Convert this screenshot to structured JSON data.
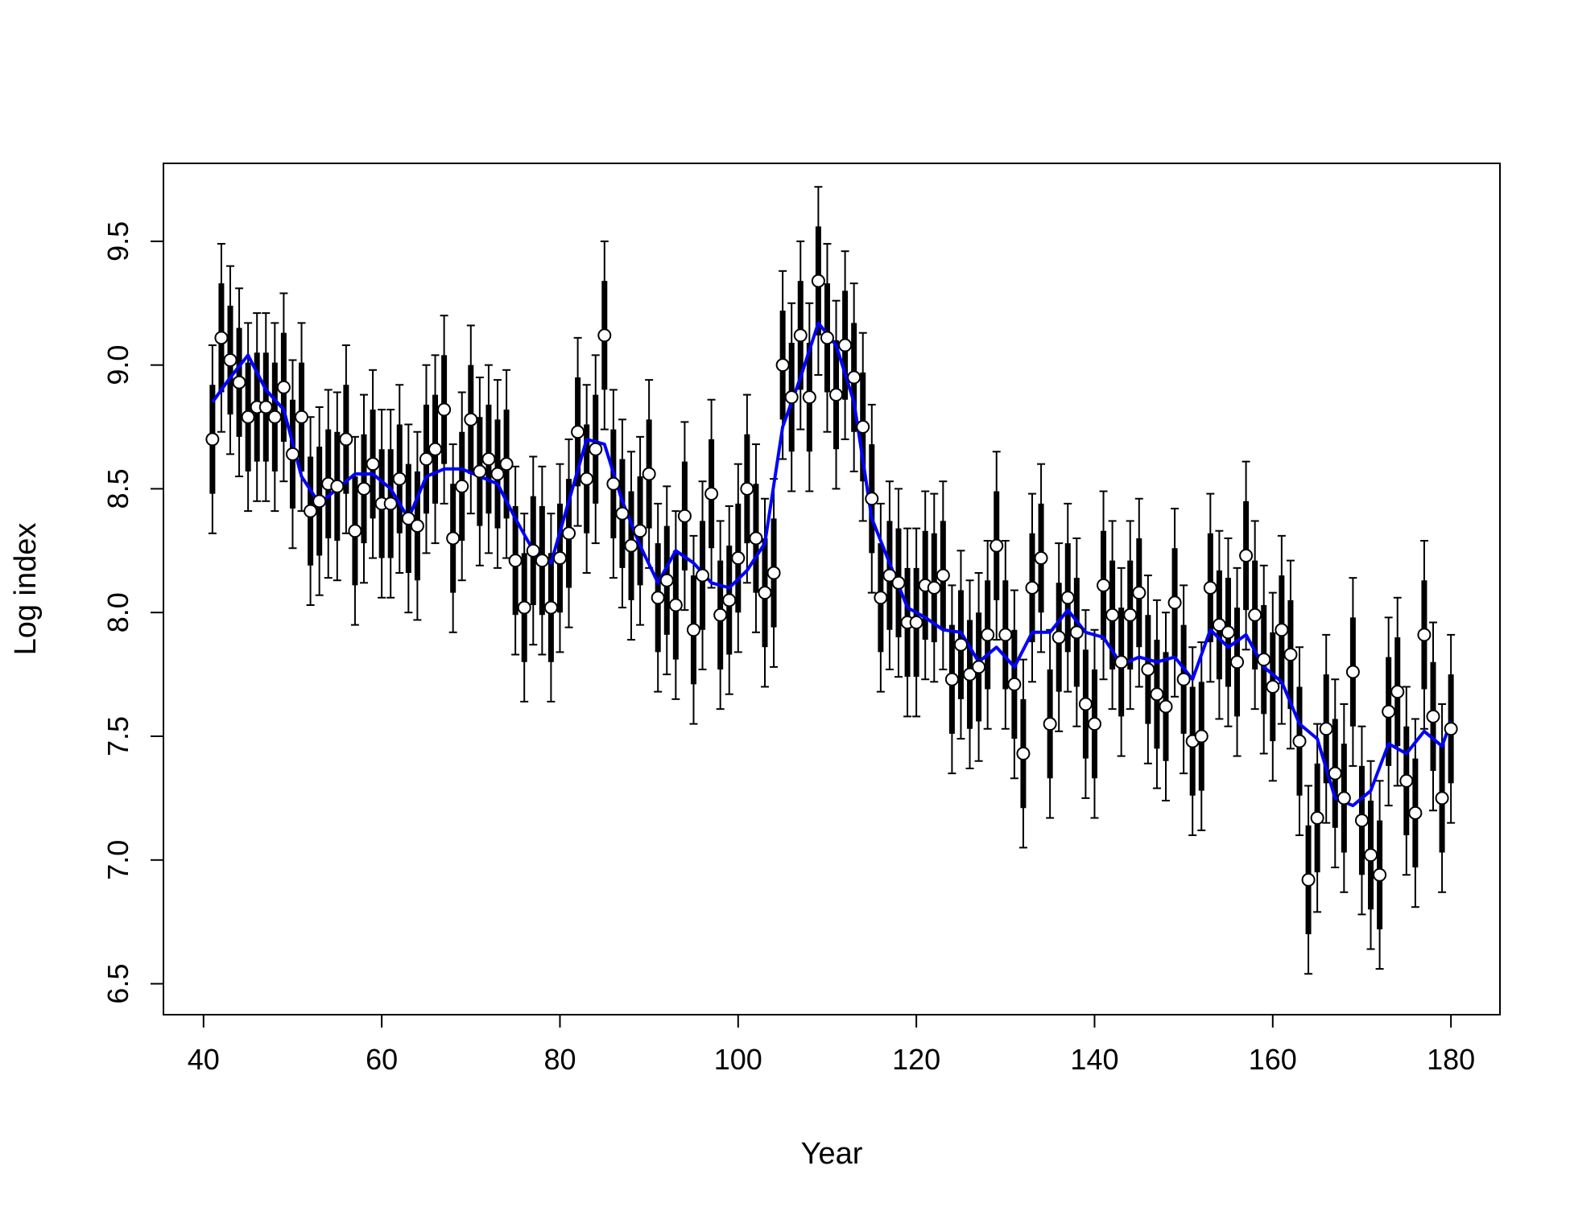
{
  "chart_data": {
    "type": "scatter",
    "xlabel": "Year",
    "ylabel": "Log index",
    "xlim": [
      35.5,
      185.5
    ],
    "ylim": [
      6.375,
      9.815
    ],
    "xticks": [
      40,
      60,
      80,
      100,
      120,
      140,
      160,
      180
    ],
    "xtick_labels": [
      "40",
      "60",
      "80",
      "100",
      "120",
      "140",
      "160",
      "180"
    ],
    "yticks": [
      6.5,
      7.0,
      7.5,
      8.0,
      8.5,
      9.0,
      9.5
    ],
    "ytick_labels": [
      "6.5",
      "7.0",
      "7.5",
      "8.0",
      "8.5",
      "9.0",
      "9.5"
    ],
    "grid": false,
    "colors": {
      "points": "#ffffff",
      "point_outline": "#000000",
      "bars": "#000000",
      "trend": "#0000ff"
    },
    "series": [
      {
        "type": "points_with_intervals",
        "x": [
          41,
          42,
          43,
          44,
          45,
          46,
          47,
          48,
          49,
          50,
          51,
          52,
          53,
          54,
          55,
          56,
          57,
          58,
          59,
          60,
          61,
          62,
          63,
          64,
          65,
          66,
          67,
          68,
          69,
          70,
          71,
          72,
          73,
          74,
          75,
          76,
          77,
          78,
          79,
          80,
          81,
          82,
          83,
          84,
          85,
          86,
          87,
          88,
          89,
          90,
          91,
          92,
          93,
          94,
          95,
          96,
          97,
          98,
          99,
          100,
          101,
          102,
          103,
          104,
          105,
          106,
          107,
          108,
          109,
          110,
          111,
          112,
          113,
          114,
          115,
          116,
          117,
          118,
          119,
          120,
          121,
          122,
          123,
          124,
          125,
          126,
          127,
          128,
          129,
          130,
          131,
          132,
          133,
          134,
          135,
          136,
          137,
          138,
          139,
          140,
          141,
          142,
          143,
          144,
          145,
          146,
          147,
          148,
          149,
          150,
          151,
          152,
          153,
          154,
          155,
          156,
          157,
          158,
          159,
          160,
          161,
          162,
          163,
          164,
          165,
          166,
          167,
          168,
          169,
          170,
          171,
          172,
          173,
          174,
          175,
          176,
          177,
          178,
          179,
          180
        ],
        "y": [
          8.7,
          9.11,
          9.02,
          8.93,
          8.79,
          8.83,
          8.83,
          8.79,
          8.91,
          8.64,
          8.79,
          8.41,
          8.45,
          8.52,
          8.51,
          8.7,
          8.33,
          8.5,
          8.6,
          8.44,
          8.44,
          8.54,
          8.38,
          8.35,
          8.62,
          8.66,
          8.82,
          8.3,
          8.51,
          8.78,
          8.57,
          8.62,
          8.56,
          8.6,
          8.21,
          8.02,
          8.25,
          8.21,
          8.02,
          8.22,
          8.32,
          8.73,
          8.54,
          8.66,
          9.12,
          8.52,
          8.4,
          8.27,
          8.33,
          8.56,
          8.06,
          8.13,
          8.03,
          8.39,
          7.93,
          8.15,
          8.48,
          7.99,
          8.05,
          8.22,
          8.5,
          8.3,
          8.08,
          8.16,
          9.0,
          8.87,
          9.12,
          8.87,
          9.34,
          9.11,
          8.88,
          9.08,
          8.95,
          8.75,
          8.46,
          8.06,
          8.15,
          8.12,
          7.96,
          7.96,
          8.11,
          8.1,
          8.15,
          7.73,
          7.87,
          7.75,
          7.78,
          7.91,
          8.27,
          7.91,
          7.71,
          7.43,
          8.1,
          8.22,
          7.55,
          7.9,
          8.06,
          7.92,
          7.63,
          7.55,
          8.11,
          7.99,
          7.8,
          7.99,
          8.08,
          7.77,
          7.67,
          7.62,
          8.04,
          7.73,
          7.48,
          7.5,
          8.1,
          7.95,
          7.92,
          7.8,
          8.23,
          7.99,
          7.81,
          7.7,
          7.93,
          7.83,
          7.48,
          6.92,
          7.17,
          7.53,
          7.35,
          7.25,
          7.76,
          7.16,
          7.02,
          6.94,
          7.6,
          7.68,
          7.32,
          7.19,
          7.91,
          7.58,
          7.25,
          7.53
        ],
        "interval_inner_half": 0.22,
        "interval_outer_half": 0.38
      },
      {
        "type": "line",
        "x": [
          41,
          43,
          45,
          47,
          49,
          51,
          53,
          55,
          57,
          59,
          61,
          63,
          65,
          67,
          69,
          71,
          73,
          75,
          77,
          79,
          81,
          83,
          85,
          87,
          89,
          91,
          93,
          95,
          97,
          99,
          101,
          103,
          105,
          107,
          109,
          111,
          113,
          115,
          117,
          119,
          121,
          123,
          125,
          127,
          129,
          131,
          133,
          135,
          137,
          139,
          141,
          143,
          145,
          147,
          149,
          151,
          153,
          155,
          157,
          159,
          161,
          163,
          165,
          167,
          169,
          171,
          173,
          175,
          177,
          179,
          180
        ],
        "y": [
          8.85,
          8.95,
          9.04,
          8.9,
          8.82,
          8.55,
          8.44,
          8.5,
          8.56,
          8.56,
          8.5,
          8.38,
          8.55,
          8.58,
          8.58,
          8.55,
          8.52,
          8.38,
          8.25,
          8.2,
          8.45,
          8.7,
          8.68,
          8.45,
          8.27,
          8.12,
          8.25,
          8.2,
          8.12,
          8.1,
          8.17,
          8.28,
          8.75,
          8.95,
          9.17,
          9.08,
          8.85,
          8.38,
          8.2,
          8.02,
          7.98,
          7.93,
          7.92,
          7.8,
          7.86,
          7.78,
          7.92,
          7.92,
          8.01,
          7.92,
          7.9,
          7.79,
          7.82,
          7.8,
          7.82,
          7.73,
          7.93,
          7.86,
          7.91,
          7.78,
          7.72,
          7.55,
          7.49,
          7.25,
          7.22,
          7.28,
          7.47,
          7.43,
          7.52,
          7.46,
          7.56
        ]
      }
    ]
  }
}
